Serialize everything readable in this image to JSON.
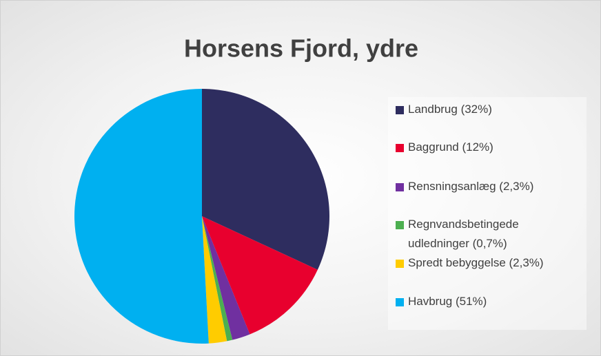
{
  "chart_data": {
    "type": "pie",
    "title": "Horsens Fjord, ydre",
    "categories": [
      "Landbrug (32%)",
      "Baggrund (12%)",
      "Rensningsanlæg (2,3%)",
      "Regnvandsbetingede udledninger (0,7%)",
      "Spredt bebyggelse (2,3%)",
      "Havbrug (51%)"
    ],
    "values": [
      32,
      12,
      2.3,
      0.7,
      2.3,
      51
    ],
    "colors": [
      "#2e2d5f",
      "#e8002e",
      "#7030a0",
      "#4caf50",
      "#ffcc00",
      "#00b0f0"
    ],
    "legend": "right"
  }
}
